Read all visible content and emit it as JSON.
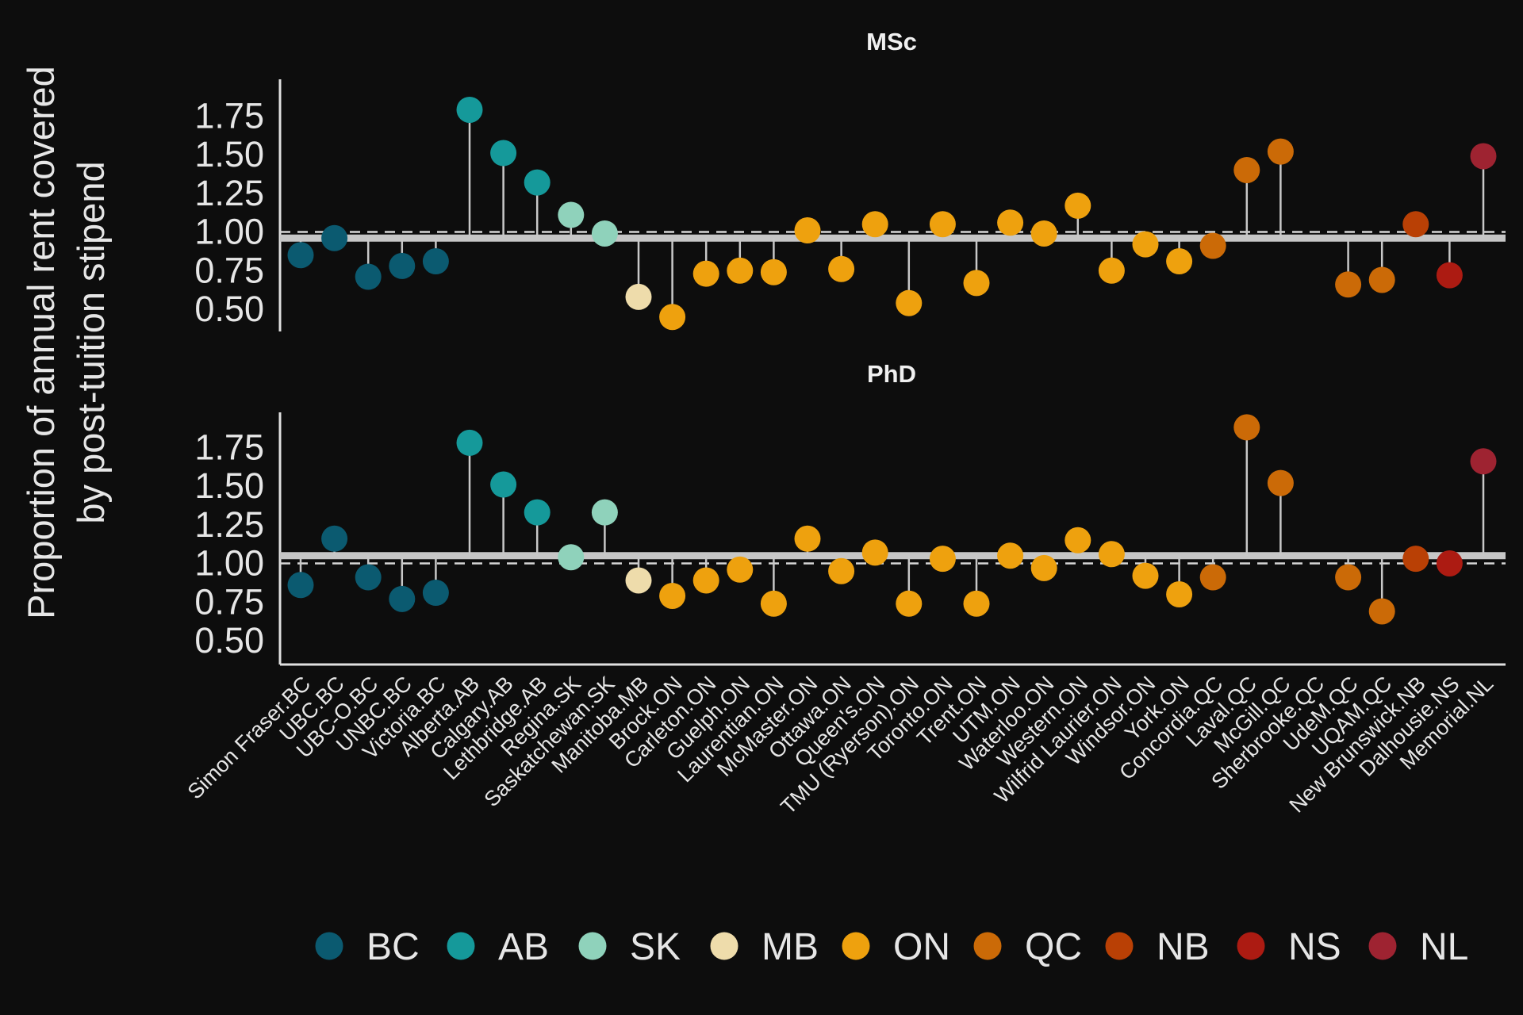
{
  "chart_data": {
    "type": "lollipop",
    "ylabel_lines": [
      "Proportion of annual rent covered",
      "by post-tuition stipend"
    ],
    "y_ticks": [
      0.5,
      0.75,
      1.0,
      1.25,
      1.5,
      1.75
    ],
    "y_tick_labels": [
      "0.50",
      "0.75",
      "1.00",
      "1.25",
      "1.50",
      "1.75"
    ],
    "ylim": [
      0.35,
      1.98
    ],
    "reference_line": 1.0,
    "categories": [
      "Simon Fraser.BC",
      "UBC.BC",
      "UBC-O.BC",
      "UNBC.BC",
      "Victoria.BC",
      "Alberta.AB",
      "Calgary.AB",
      "Lethbridge.AB",
      "Regina.SK",
      "Saskatchewan.SK",
      "Manitoba.MB",
      "Brock.ON",
      "Carleton.ON",
      "Guelph.ON",
      "Laurentian.ON",
      "McMaster.ON",
      "Ottawa.ON",
      "Queen's.ON",
      "TMU (Ryerson).ON",
      "Toronto.ON",
      "Trent.ON",
      "UTM.ON",
      "Waterloo.ON",
      "Western.ON",
      "Wilfrid Laurier.ON",
      "Windsor.ON",
      "York.ON",
      "Concordia.QC",
      "Laval.QC",
      "McGill.QC",
      "Sherbrooke.QC",
      "UdeM.QC",
      "UQAM.QC",
      "New Brunswick.NB",
      "Dalhousie.NS",
      "Memorial.NL"
    ],
    "province": [
      "BC",
      "BC",
      "BC",
      "BC",
      "BC",
      "AB",
      "AB",
      "AB",
      "SK",
      "SK",
      "MB",
      "ON",
      "ON",
      "ON",
      "ON",
      "ON",
      "ON",
      "ON",
      "ON",
      "ON",
      "ON",
      "ON",
      "ON",
      "ON",
      "ON",
      "ON",
      "ON",
      "QC",
      "QC",
      "QC",
      "QC",
      "QC",
      "QC",
      "NB",
      "NS",
      "NL"
    ],
    "legend": [
      {
        "label": "BC",
        "color": "#0b5a70"
      },
      {
        "label": "AB",
        "color": "#15999a"
      },
      {
        "label": "SK",
        "color": "#8fd2bb"
      },
      {
        "label": "MB",
        "color": "#eedcab"
      },
      {
        "label": "ON",
        "color": "#eea10e"
      },
      {
        "label": "QC",
        "color": "#cb6a07"
      },
      {
        "label": "NB",
        "color": "#b94005"
      },
      {
        "label": "NS",
        "color": "#ac1b12"
      },
      {
        "label": "NL",
        "color": "#9e2331"
      }
    ],
    "panels": [
      {
        "title": "MSc",
        "mean": 0.96,
        "values": [
          0.85,
          0.96,
          0.71,
          0.78,
          0.81,
          1.79,
          1.51,
          1.32,
          1.11,
          0.99,
          0.58,
          0.45,
          0.73,
          0.75,
          0.74,
          1.01,
          0.76,
          1.05,
          0.54,
          1.05,
          0.67,
          1.06,
          0.99,
          1.17,
          0.75,
          0.92,
          0.81,
          0.91,
          1.4,
          1.52,
          null,
          0.66,
          0.69,
          1.05,
          0.72,
          1.49
        ]
      },
      {
        "title": "PhD",
        "mean": 1.05,
        "values": [
          0.86,
          1.16,
          0.91,
          0.77,
          0.81,
          1.78,
          1.51,
          1.33,
          1.04,
          1.33,
          0.89,
          0.79,
          0.89,
          0.96,
          0.74,
          1.16,
          0.95,
          1.07,
          0.74,
          1.03,
          0.74,
          1.05,
          0.97,
          1.15,
          1.06,
          0.92,
          0.8,
          0.91,
          1.88,
          1.52,
          null,
          0.91,
          0.69,
          1.03,
          1.0,
          1.66
        ]
      }
    ]
  }
}
